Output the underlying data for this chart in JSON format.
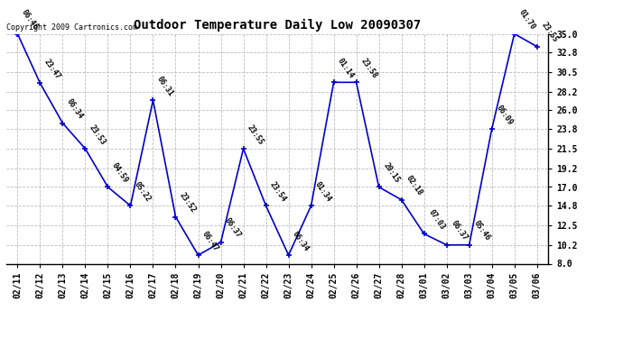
{
  "title": "Outdoor Temperature Daily Low 20090307",
  "copyright": "Copyright 2009 Cartronics.com",
  "dates": [
    "02/11",
    "02/12",
    "02/13",
    "02/14",
    "02/15",
    "02/16",
    "02/17",
    "02/18",
    "02/19",
    "02/20",
    "02/21",
    "02/22",
    "02/23",
    "02/24",
    "02/25",
    "02/26",
    "02/27",
    "02/28",
    "03/01",
    "03/02",
    "03/03",
    "03/04",
    "03/05",
    "03/06"
  ],
  "values": [
    35.0,
    29.2,
    24.5,
    21.5,
    17.0,
    14.8,
    27.2,
    13.5,
    9.0,
    10.5,
    21.5,
    14.8,
    9.0,
    14.8,
    29.3,
    29.3,
    17.0,
    15.5,
    11.5,
    10.2,
    10.2,
    23.8,
    35.0,
    33.5
  ],
  "labels": [
    "06:46",
    "23:47",
    "06:34",
    "23:53",
    "04:59",
    "05:22",
    "06:31",
    "23:52",
    "06:47",
    "06:37",
    "23:55",
    "23:54",
    "06:34",
    "01:34",
    "01:14",
    "23:58",
    "20:15",
    "02:18",
    "07:03",
    "06:37",
    "05:46",
    "06:09",
    "01:70",
    "23:55"
  ],
  "line_color": "#0000cc",
  "marker_color": "#0000cc",
  "bg_color": "#ffffff",
  "grid_color": "#bbbbbb",
  "text_color": "#000000",
  "ylim": [
    8.0,
    35.0
  ],
  "yticks": [
    8.0,
    10.2,
    12.5,
    14.8,
    17.0,
    19.2,
    21.5,
    23.8,
    26.0,
    28.2,
    30.5,
    32.8,
    35.0
  ],
  "title_fontsize": 10,
  "label_fontsize": 6,
  "tick_fontsize": 7,
  "copyright_fontsize": 6
}
